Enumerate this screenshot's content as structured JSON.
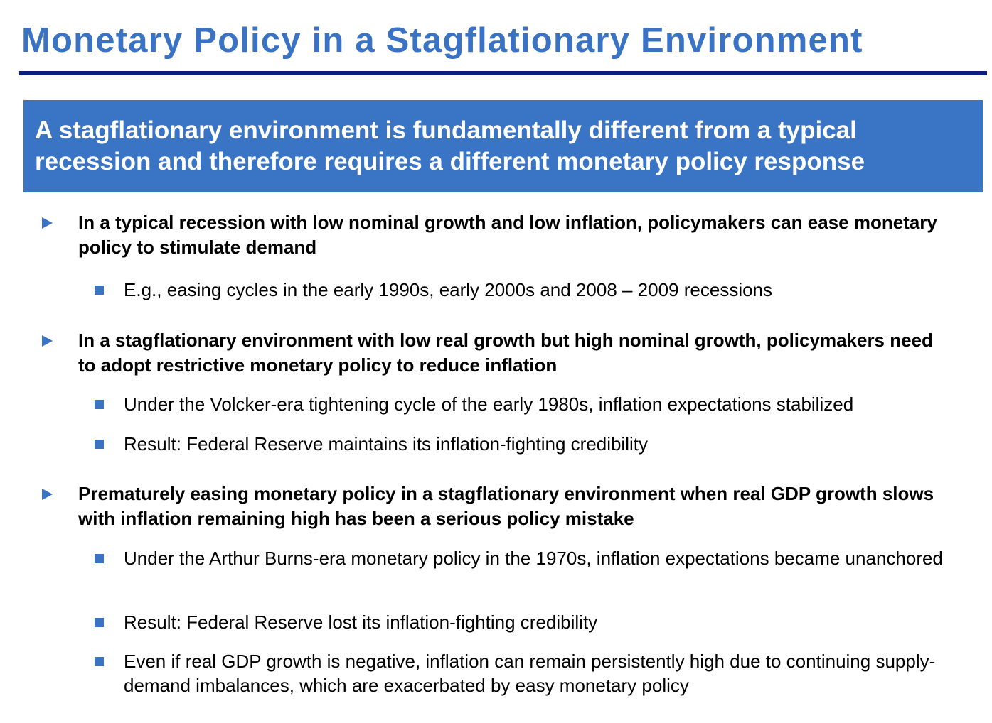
{
  "slide": {
    "title": "Monetary Policy in a Stagflationary Environment",
    "banner": "A stagflationary environment is fundamentally different from a typical recession and therefore requires a different monetary policy response"
  },
  "bullets": [
    {
      "text": "In a typical recession with low nominal growth and low inflation, policymakers can ease monetary policy to stimulate demand",
      "subs": [
        "E.g., easing cycles in the early 1990s, early 2000s and 2008 – 2009 recessions"
      ]
    },
    {
      "text": "In a stagflationary environment with low real growth but high nominal growth, policymakers need to adopt restrictive monetary policy to reduce inflation",
      "subs": [
        "Under the Volcker-era tightening cycle of the early 1980s, inflation expectations stabilized",
        "Result: Federal Reserve maintains its inflation-fighting credibility"
      ]
    },
    {
      "text": "Prematurely easing monetary policy in a stagflationary environment when real GDP growth slows with inflation remaining high has been a serious policy mistake",
      "subs": [
        "Under the Arthur Burns-era monetary policy in the 1970s, inflation expectations became unanchored",
        "Result: Federal Reserve lost its inflation-fighting credibility",
        "Even if real GDP growth is negative, inflation can remain persistently high due to continuing supply-demand imbalances, which are exacerbated by easy monetary policy"
      ]
    }
  ],
  "colors": {
    "title": "#3a72c4",
    "rule": "#0d1f7a",
    "banner_bg": "#3a74c4",
    "marker": "#3a72c4"
  }
}
